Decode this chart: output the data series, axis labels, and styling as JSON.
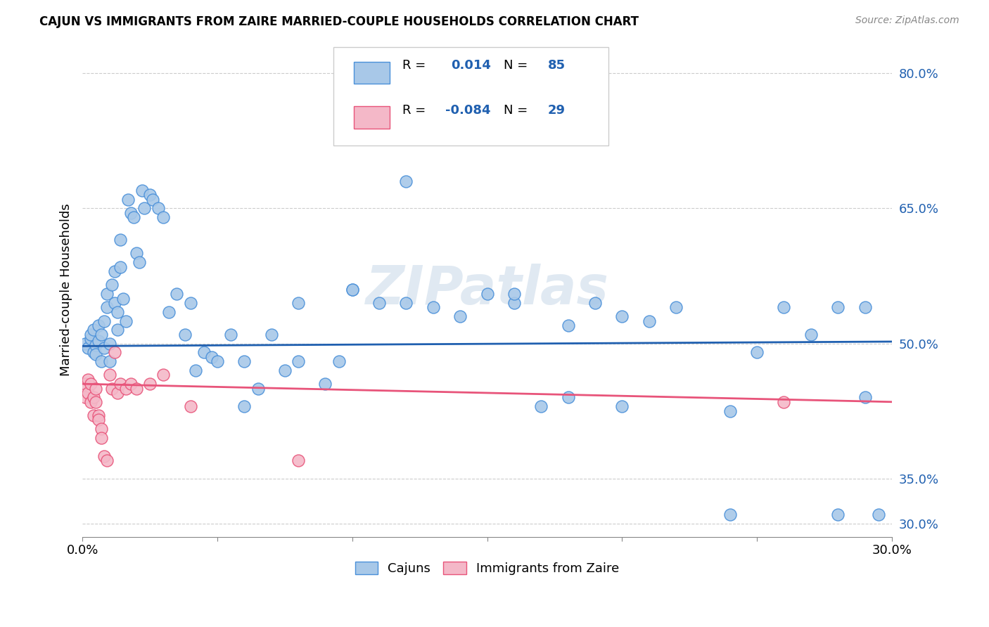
{
  "title": "CAJUN VS IMMIGRANTS FROM ZAIRE MARRIED-COUPLE HOUSEHOLDS CORRELATION CHART",
  "source": "Source: ZipAtlas.com",
  "ylabel": "Married-couple Households",
  "xlim": [
    0.0,
    0.3
  ],
  "ylim": [
    0.285,
    0.835
  ],
  "yticks": [
    0.3,
    0.35,
    0.5,
    0.65,
    0.8
  ],
  "ytick_labels": [
    "30.0%",
    "35.0%",
    "50.0%",
    "65.0%",
    "80.0%"
  ],
  "xticks": [
    0.0,
    0.05,
    0.1,
    0.15,
    0.2,
    0.25,
    0.3
  ],
  "xtick_labels": [
    "0.0%",
    "",
    "",
    "",
    "",
    "",
    "30.0%"
  ],
  "color_blue": "#a8c8e8",
  "color_pink": "#f4b8c8",
  "edge_blue": "#4a90d9",
  "edge_pink": "#e8547a",
  "line_blue": "#2060b0",
  "line_pink": "#e8547a",
  "text_blue": "#2060b0",
  "watermark": "ZIPatlas",
  "background_color": "#ffffff",
  "grid_color": "#cccccc",
  "blue_line_y0": 0.497,
  "blue_line_y1": 0.502,
  "pink_line_y0": 0.455,
  "pink_line_y1": 0.435,
  "cajun_x": [
    0.001,
    0.002,
    0.003,
    0.003,
    0.004,
    0.004,
    0.005,
    0.005,
    0.006,
    0.006,
    0.007,
    0.007,
    0.008,
    0.008,
    0.009,
    0.009,
    0.01,
    0.01,
    0.011,
    0.012,
    0.012,
    0.013,
    0.013,
    0.014,
    0.014,
    0.015,
    0.016,
    0.017,
    0.018,
    0.019,
    0.02,
    0.021,
    0.022,
    0.023,
    0.025,
    0.026,
    0.028,
    0.03,
    0.032,
    0.035,
    0.038,
    0.04,
    0.042,
    0.045,
    0.048,
    0.05,
    0.055,
    0.06,
    0.065,
    0.07,
    0.075,
    0.08,
    0.09,
    0.095,
    0.1,
    0.11,
    0.12,
    0.13,
    0.14,
    0.15,
    0.16,
    0.17,
    0.18,
    0.19,
    0.2,
    0.21,
    0.22,
    0.24,
    0.25,
    0.26,
    0.27,
    0.28,
    0.29,
    0.295,
    0.14,
    0.16,
    0.12,
    0.1,
    0.08,
    0.06,
    0.18,
    0.2,
    0.24,
    0.28,
    0.29
  ],
  "cajun_y": [
    0.5,
    0.495,
    0.505,
    0.51,
    0.49,
    0.515,
    0.498,
    0.488,
    0.503,
    0.52,
    0.48,
    0.51,
    0.495,
    0.525,
    0.54,
    0.555,
    0.48,
    0.5,
    0.565,
    0.58,
    0.545,
    0.515,
    0.535,
    0.615,
    0.585,
    0.55,
    0.525,
    0.66,
    0.645,
    0.64,
    0.6,
    0.59,
    0.67,
    0.65,
    0.665,
    0.66,
    0.65,
    0.64,
    0.535,
    0.555,
    0.51,
    0.545,
    0.47,
    0.49,
    0.485,
    0.48,
    0.51,
    0.48,
    0.45,
    0.51,
    0.47,
    0.545,
    0.455,
    0.48,
    0.56,
    0.545,
    0.545,
    0.54,
    0.53,
    0.555,
    0.545,
    0.43,
    0.52,
    0.545,
    0.53,
    0.525,
    0.54,
    0.425,
    0.49,
    0.54,
    0.51,
    0.54,
    0.54,
    0.31,
    0.745,
    0.555,
    0.68,
    0.56,
    0.48,
    0.43,
    0.44,
    0.43,
    0.31,
    0.31,
    0.44
  ],
  "zaire_x": [
    0.001,
    0.001,
    0.002,
    0.002,
    0.003,
    0.003,
    0.004,
    0.004,
    0.005,
    0.005,
    0.006,
    0.006,
    0.007,
    0.007,
    0.008,
    0.009,
    0.01,
    0.011,
    0.012,
    0.013,
    0.014,
    0.016,
    0.018,
    0.02,
    0.025,
    0.03,
    0.04,
    0.08,
    0.26
  ],
  "zaire_y": [
    0.455,
    0.44,
    0.445,
    0.46,
    0.455,
    0.435,
    0.44,
    0.42,
    0.435,
    0.45,
    0.42,
    0.415,
    0.405,
    0.395,
    0.375,
    0.37,
    0.465,
    0.45,
    0.49,
    0.445,
    0.455,
    0.45,
    0.455,
    0.45,
    0.455,
    0.465,
    0.43,
    0.37,
    0.435
  ]
}
